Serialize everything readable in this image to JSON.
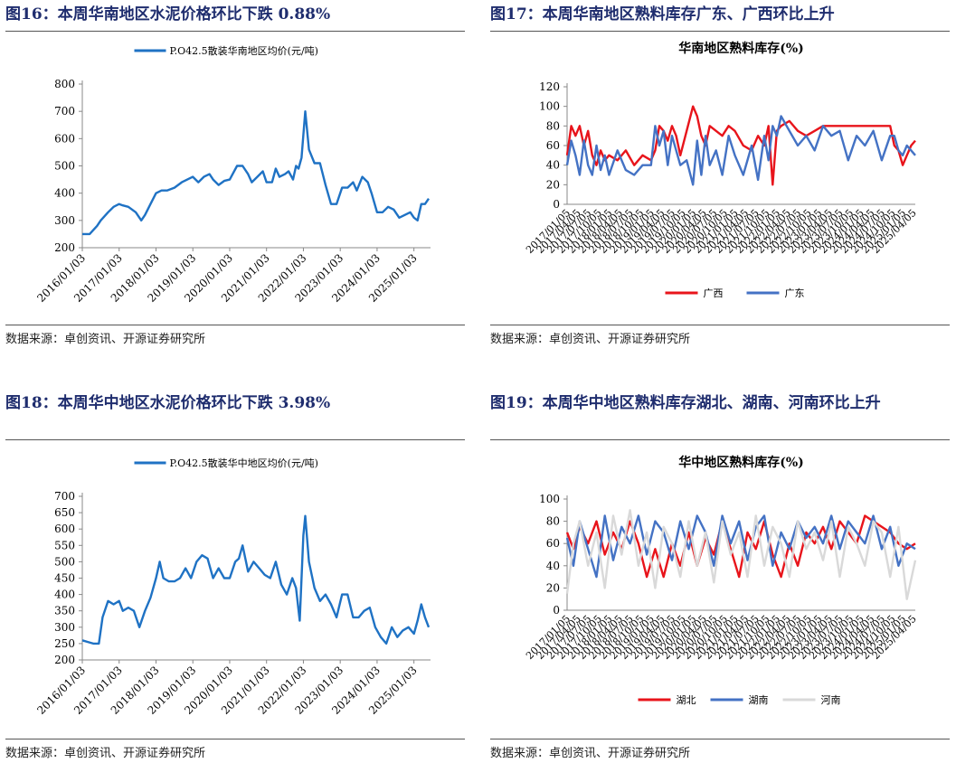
{
  "source": "数据来源：卓创资讯、开源证券研究所",
  "panels": [
    {
      "title": "图16：本周华南地区水泥价格环比下跌 0.88%"
    },
    {
      "title": "图17：本周华南地区熟料库存广东、广西环比上升"
    },
    {
      "title": "图18：本周华中地区水泥价格环比下跌 3.98%"
    },
    {
      "title": "图19：本周华中地区熟料库存湖北、湖南、河南环比上升"
    }
  ],
  "chart_data": [
    {
      "type": "line",
      "title": "",
      "legend_position": "top",
      "ylim": [
        200,
        800
      ],
      "yticks": [
        200,
        300,
        400,
        500,
        600,
        700,
        800
      ],
      "xticks": [
        "2016/01/03",
        "2017/01/03",
        "2018/01/03",
        "2019/01/03",
        "2020/01/03",
        "2021/01/03",
        "2022/01/03",
        "2023/01/03",
        "2024/01/03",
        "2025/01/03"
      ],
      "xlim": [
        2016.0,
        2025.45
      ],
      "series": [
        {
          "name": "P.O42.5散装华南地区均价(元/吨)",
          "color": "#1f72c4",
          "x": [
            2016.0,
            2016.2,
            2016.4,
            2016.5,
            2016.7,
            2016.85,
            2017.0,
            2017.1,
            2017.25,
            2017.45,
            2017.6,
            2017.7,
            2017.85,
            2018.0,
            2018.15,
            2018.3,
            2018.5,
            2018.7,
            2018.85,
            2019.0,
            2019.15,
            2019.3,
            2019.45,
            2019.55,
            2019.7,
            2019.85,
            2020.0,
            2020.2,
            2020.35,
            2020.5,
            2020.6,
            2020.75,
            2020.9,
            2021.0,
            2021.15,
            2021.25,
            2021.35,
            2021.5,
            2021.6,
            2021.72,
            2021.8,
            2021.87,
            2021.95,
            2022.05,
            2022.15,
            2022.3,
            2022.45,
            2022.6,
            2022.75,
            2022.9,
            2023.05,
            2023.2,
            2023.35,
            2023.45,
            2023.6,
            2023.75,
            2023.85,
            2024.0,
            2024.15,
            2024.3,
            2024.45,
            2024.6,
            2024.75,
            2024.9,
            2025.0,
            2025.1,
            2025.2,
            2025.3,
            2025.4
          ],
          "y": [
            250,
            250,
            280,
            300,
            330,
            350,
            360,
            355,
            350,
            330,
            300,
            320,
            360,
            400,
            410,
            410,
            420,
            440,
            450,
            460,
            440,
            460,
            470,
            450,
            430,
            445,
            450,
            500,
            500,
            470,
            440,
            460,
            480,
            440,
            440,
            490,
            460,
            470,
            480,
            450,
            500,
            490,
            530,
            700,
            560,
            510,
            510,
            430,
            360,
            360,
            420,
            420,
            440,
            410,
            460,
            440,
            400,
            330,
            330,
            350,
            340,
            310,
            320,
            330,
            310,
            300,
            360,
            360,
            380
          ]
        }
      ]
    },
    {
      "type": "line",
      "title": "华南地区熟料库存(%)",
      "legend_position": "bottom",
      "ylim": [
        0,
        120
      ],
      "yticks": [
        0,
        20,
        40,
        60,
        80,
        100,
        120
      ],
      "xlim": [
        2017.0,
        2025.3
      ],
      "xtick_labels_note": "dense rotated date labels (2017/01/05 ... 2025/04/05)",
      "xtick_labels": [
        "2017/01/05",
        "2017/04/05",
        "2017/07/05",
        "2017/10/05",
        "2018/01/05",
        "2018/04/05",
        "2018/07/05",
        "2018/10/05",
        "2019/01/05",
        "2019/04/05",
        "2019/07/05",
        "2019/10/05",
        "2020/01/05",
        "2020/04/05",
        "2020/07/05",
        "2020/10/05",
        "2021/01/05",
        "2021/04/05",
        "2021/07/05",
        "2021/10/05",
        "2022/01/05",
        "2022/04/05",
        "2022/07/05",
        "2022/10/05",
        "2023/01/05",
        "2023/04/05",
        "2023/07/05",
        "2023/10/05",
        "2024/01/05",
        "2024/04/05",
        "2024/07/05",
        "2024/10/05",
        "2025/01/05",
        "2025/04/05"
      ],
      "series": [
        {
          "name": "广西",
          "color": "#e8141b",
          "x": [
            2017.0,
            2017.1,
            2017.2,
            2017.3,
            2017.4,
            2017.5,
            2017.6,
            2017.7,
            2017.8,
            2017.9,
            2018.0,
            2018.2,
            2018.4,
            2018.6,
            2018.8,
            2019.0,
            2019.1,
            2019.2,
            2019.3,
            2019.4,
            2019.5,
            2019.6,
            2019.7,
            2019.85,
            2020.0,
            2020.1,
            2020.2,
            2020.3,
            2020.4,
            2020.55,
            2020.7,
            2020.85,
            2021.0,
            2021.2,
            2021.4,
            2021.55,
            2021.7,
            2021.8,
            2021.9,
            2022.0,
            2022.1,
            2022.3,
            2022.5,
            2022.7,
            2022.9,
            2023.1,
            2023.3,
            2023.5,
            2023.7,
            2023.9,
            2024.1,
            2024.3,
            2024.5,
            2024.7,
            2024.8,
            2024.9,
            2025.0,
            2025.1,
            2025.2,
            2025.3
          ],
          "y": [
            50,
            80,
            70,
            80,
            60,
            75,
            50,
            40,
            55,
            45,
            50,
            45,
            55,
            40,
            50,
            45,
            55,
            80,
            75,
            65,
            80,
            70,
            50,
            75,
            100,
            90,
            70,
            60,
            80,
            75,
            70,
            80,
            75,
            60,
            55,
            70,
            60,
            80,
            20,
            75,
            80,
            85,
            75,
            70,
            75,
            80,
            80,
            80,
            80,
            80,
            80,
            80,
            80,
            80,
            60,
            55,
            40,
            50,
            60,
            65
          ]
        },
        {
          "name": "广东",
          "color": "#4472c4",
          "x": [
            2017.0,
            2017.1,
            2017.2,
            2017.3,
            2017.4,
            2017.5,
            2017.6,
            2017.7,
            2017.8,
            2017.9,
            2018.0,
            2018.2,
            2018.4,
            2018.6,
            2018.8,
            2019.0,
            2019.1,
            2019.2,
            2019.3,
            2019.4,
            2019.5,
            2019.6,
            2019.7,
            2019.85,
            2020.0,
            2020.1,
            2020.2,
            2020.3,
            2020.4,
            2020.55,
            2020.7,
            2020.85,
            2021.0,
            2021.2,
            2021.4,
            2021.55,
            2021.7,
            2021.8,
            2021.9,
            2022.0,
            2022.1,
            2022.3,
            2022.5,
            2022.7,
            2022.9,
            2023.1,
            2023.3,
            2023.5,
            2023.7,
            2023.9,
            2024.1,
            2024.3,
            2024.5,
            2024.7,
            2024.8,
            2024.9,
            2025.0,
            2025.1,
            2025.2,
            2025.3
          ],
          "y": [
            40,
            65,
            50,
            30,
            65,
            40,
            30,
            60,
            35,
            50,
            30,
            55,
            35,
            30,
            40,
            40,
            80,
            60,
            75,
            40,
            70,
            55,
            40,
            45,
            20,
            65,
            30,
            70,
            40,
            55,
            30,
            70,
            50,
            30,
            60,
            25,
            70,
            45,
            80,
            70,
            90,
            75,
            60,
            70,
            55,
            80,
            70,
            75,
            45,
            70,
            60,
            75,
            45,
            70,
            70,
            55,
            50,
            60,
            55,
            50
          ]
        }
      ]
    },
    {
      "type": "line",
      "title": "",
      "legend_position": "top",
      "ylim": [
        200,
        700
      ],
      "yticks": [
        200,
        250,
        300,
        350,
        400,
        450,
        500,
        550,
        600,
        650,
        700
      ],
      "xticks": [
        "2016/01/03",
        "2017/01/03",
        "2018/01/03",
        "2019/01/03",
        "2020/01/03",
        "2021/01/03",
        "2022/01/03",
        "2023/01/03",
        "2024/01/03",
        "2025/01/03"
      ],
      "xlim": [
        2016.0,
        2025.45
      ],
      "series": [
        {
          "name": "P.O42.5散装华中地区均价(元/吨)",
          "color": "#1f72c4",
          "x": [
            2016.0,
            2016.15,
            2016.3,
            2016.45,
            2016.55,
            2016.7,
            2016.85,
            2017.0,
            2017.1,
            2017.25,
            2017.4,
            2017.55,
            2017.7,
            2017.85,
            2018.0,
            2018.1,
            2018.2,
            2018.35,
            2018.5,
            2018.65,
            2018.8,
            2018.95,
            2019.1,
            2019.25,
            2019.4,
            2019.55,
            2019.7,
            2019.85,
            2020.0,
            2020.15,
            2020.25,
            2020.35,
            2020.5,
            2020.65,
            2020.8,
            2020.95,
            2021.1,
            2021.25,
            2021.4,
            2021.55,
            2021.7,
            2021.8,
            2021.9,
            2022.0,
            2022.05,
            2022.15,
            2022.3,
            2022.45,
            2022.6,
            2022.75,
            2022.9,
            2023.05,
            2023.2,
            2023.35,
            2023.5,
            2023.65,
            2023.8,
            2023.95,
            2024.1,
            2024.25,
            2024.4,
            2024.55,
            2024.7,
            2024.85,
            2025.0,
            2025.1,
            2025.2,
            2025.3,
            2025.4
          ],
          "y": [
            260,
            255,
            250,
            250,
            330,
            380,
            370,
            380,
            350,
            360,
            350,
            300,
            350,
            390,
            450,
            500,
            450,
            440,
            440,
            450,
            480,
            450,
            500,
            520,
            510,
            450,
            480,
            450,
            450,
            500,
            510,
            550,
            470,
            500,
            480,
            460,
            450,
            500,
            430,
            400,
            450,
            420,
            320,
            580,
            640,
            500,
            420,
            380,
            400,
            370,
            330,
            400,
            400,
            330,
            330,
            350,
            360,
            300,
            270,
            250,
            300,
            270,
            290,
            300,
            280,
            320,
            370,
            330,
            300
          ]
        }
      ]
    },
    {
      "type": "line",
      "title": "华中地区熟料库存(%)",
      "legend_position": "bottom",
      "ylim": [
        0,
        100
      ],
      "yticks": [
        0,
        20,
        40,
        60,
        80,
        100
      ],
      "xlim": [
        2017.0,
        2025.3
      ],
      "xtick_labels": [
        "2017/01/05",
        "2017/04/05",
        "2017/07/05",
        "2017/10/05",
        "2018/01/05",
        "2018/04/05",
        "2018/07/05",
        "2018/10/05",
        "2019/01/05",
        "2019/04/05",
        "2019/07/05",
        "2019/10/05",
        "2020/01/05",
        "2020/04/05",
        "2020/07/05",
        "2020/10/05",
        "2021/01/05",
        "2021/04/05",
        "2021/07/05",
        "2021/10/05",
        "2022/01/05",
        "2022/04/05",
        "2022/07/05",
        "2022/10/05",
        "2023/01/05",
        "2023/04/05",
        "2023/07/05",
        "2023/10/05",
        "2024/01/05",
        "2024/04/05",
        "2024/07/05",
        "2024/10/05",
        "2025/01/05",
        "2025/04/05"
      ],
      "series": [
        {
          "name": "湖北",
          "color": "#e8141b",
          "x": [
            2017.0,
            2017.15,
            2017.3,
            2017.5,
            2017.7,
            2017.9,
            2018.1,
            2018.3,
            2018.5,
            2018.7,
            2018.9,
            2019.1,
            2019.3,
            2019.5,
            2019.7,
            2019.9,
            2020.1,
            2020.3,
            2020.5,
            2020.7,
            2020.9,
            2021.1,
            2021.3,
            2021.5,
            2021.7,
            2021.9,
            2022.1,
            2022.3,
            2022.5,
            2022.7,
            2022.9,
            2023.1,
            2023.3,
            2023.5,
            2023.7,
            2023.9,
            2024.1,
            2024.3,
            2024.5,
            2024.7,
            2024.9,
            2025.1,
            2025.3
          ],
          "y": [
            70,
            55,
            75,
            60,
            80,
            50,
            70,
            55,
            80,
            60,
            30,
            55,
            30,
            60,
            40,
            70,
            40,
            65,
            50,
            80,
            55,
            30,
            70,
            55,
            80,
            50,
            30,
            60,
            40,
            70,
            60,
            75,
            55,
            80,
            70,
            60,
            85,
            80,
            75,
            70,
            60,
            55,
            60
          ]
        },
        {
          "name": "湖南",
          "color": "#4472c4",
          "x": [
            2017.0,
            2017.15,
            2017.3,
            2017.5,
            2017.7,
            2017.9,
            2018.1,
            2018.3,
            2018.5,
            2018.7,
            2018.9,
            2019.1,
            2019.3,
            2019.5,
            2019.7,
            2019.9,
            2020.1,
            2020.3,
            2020.5,
            2020.7,
            2020.9,
            2021.1,
            2021.3,
            2021.5,
            2021.7,
            2021.9,
            2022.1,
            2022.3,
            2022.5,
            2022.7,
            2022.9,
            2023.1,
            2023.3,
            2023.5,
            2023.7,
            2023.9,
            2024.1,
            2024.3,
            2024.5,
            2024.7,
            2024.9,
            2025.1,
            2025.3
          ],
          "y": [
            65,
            40,
            80,
            55,
            30,
            85,
            45,
            75,
            60,
            85,
            50,
            80,
            70,
            45,
            80,
            55,
            85,
            70,
            40,
            85,
            60,
            80,
            45,
            75,
            85,
            40,
            70,
            55,
            80,
            65,
            75,
            60,
            85,
            55,
            80,
            70,
            60,
            85,
            55,
            75,
            40,
            60,
            55
          ]
        },
        {
          "name": "河南",
          "color": "#d9d9d9",
          "x": [
            2017.0,
            2017.15,
            2017.3,
            2017.5,
            2017.7,
            2017.9,
            2018.1,
            2018.3,
            2018.5,
            2018.7,
            2018.9,
            2019.1,
            2019.3,
            2019.5,
            2019.7,
            2019.9,
            2020.1,
            2020.3,
            2020.5,
            2020.7,
            2020.9,
            2021.1,
            2021.3,
            2021.5,
            2021.7,
            2021.9,
            2022.1,
            2022.3,
            2022.5,
            2022.7,
            2022.9,
            2023.1,
            2023.3,
            2023.5,
            2023.7,
            2023.9,
            2024.1,
            2024.3,
            2024.5,
            2024.7,
            2024.9,
            2025.1,
            2025.3
          ],
          "y": [
            15,
            60,
            80,
            40,
            70,
            20,
            85,
            50,
            90,
            40,
            70,
            20,
            75,
            60,
            30,
            80,
            40,
            70,
            25,
            80,
            50,
            70,
            30,
            85,
            40,
            75,
            60,
            30,
            80,
            55,
            70,
            45,
            80,
            30,
            75,
            60,
            40,
            80,
            70,
            30,
            75,
            10,
            45
          ]
        }
      ]
    }
  ]
}
